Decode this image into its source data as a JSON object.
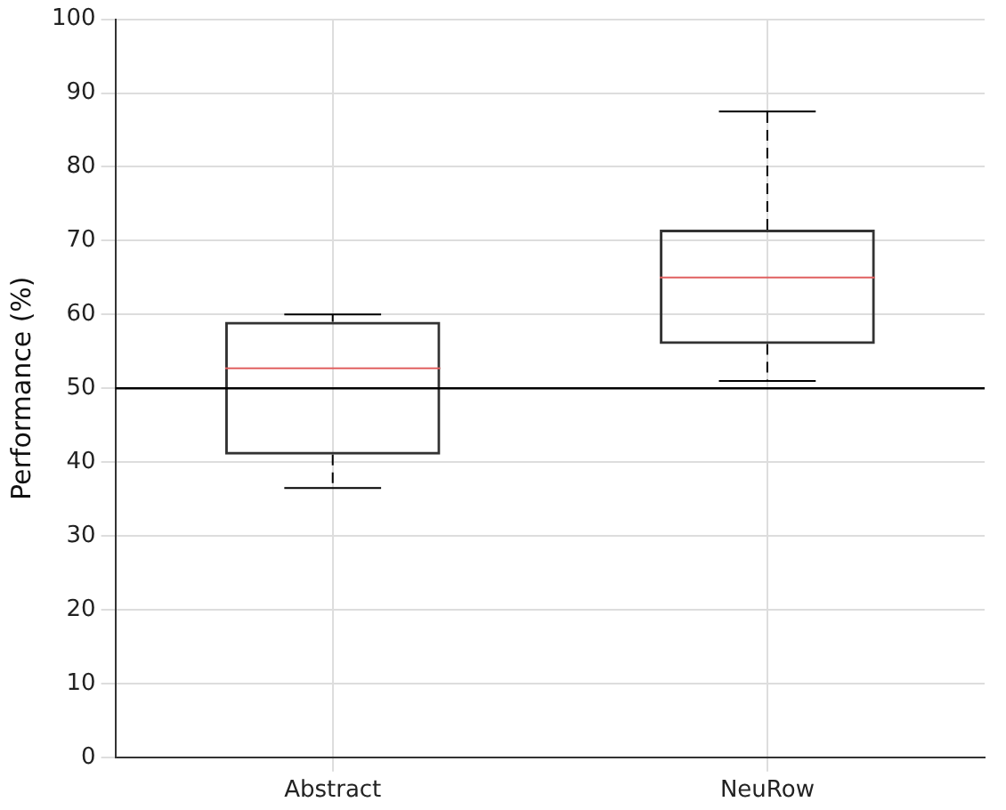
{
  "chart_data": {
    "type": "box",
    "ylabel": "Performance (%)",
    "categories": [
      "Abstract",
      "NeuRow"
    ],
    "boxes": [
      {
        "low": 36.5,
        "q1": 41,
        "median": 52.7,
        "q3": 59,
        "high": 60
      },
      {
        "low": 51,
        "q1": 56,
        "median": 65,
        "q3": 71.5,
        "high": 87.5
      }
    ],
    "ylim": [
      0,
      100
    ],
    "yticks": [
      0,
      10,
      20,
      30,
      40,
      50,
      60,
      70,
      80,
      90,
      100
    ],
    "grid": true,
    "legend": false,
    "ref_lines": [
      {
        "axis": "y",
        "value": 50,
        "color": "#000000"
      }
    ]
  }
}
